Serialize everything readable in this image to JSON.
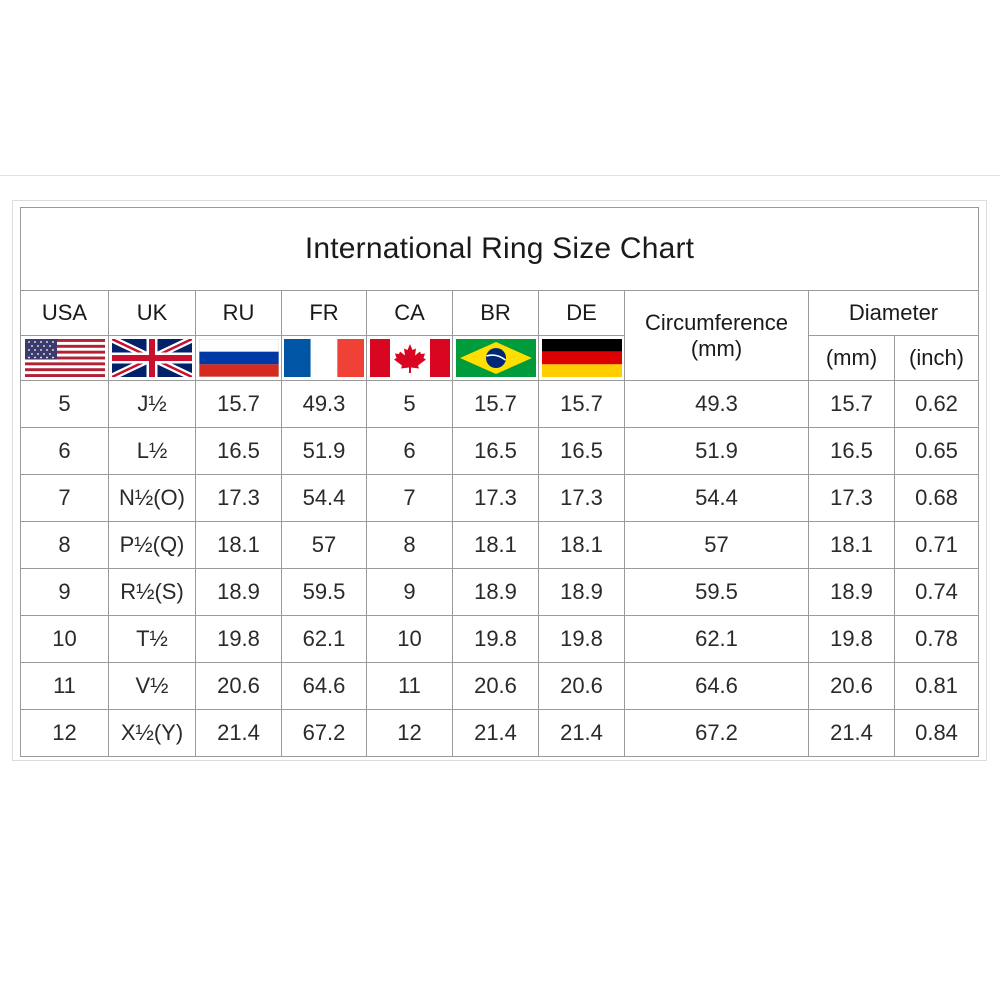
{
  "title": "International Ring Size Chart",
  "headers": {
    "usa": "USA",
    "uk": "UK",
    "ru": "RU",
    "fr": "FR",
    "ca": "CA",
    "br": "BR",
    "de": "DE",
    "circumference_line1": "Circumference",
    "circumference_line2": "(mm)",
    "diameter": "Diameter",
    "diameter_mm": "(mm)",
    "diameter_inch": "(inch)"
  },
  "flags": [
    "us-flag-icon",
    "uk-flag-icon",
    "russia-flag-icon",
    "france-flag-icon",
    "canada-flag-icon",
    "brazil-flag-icon",
    "germany-flag-icon"
  ],
  "rows": [
    {
      "usa": "5",
      "uk": "J½",
      "ru": "15.7",
      "fr": "49.3",
      "ca": "5",
      "br": "15.7",
      "de": "15.7",
      "circ": "49.3",
      "dmm": "15.7",
      "dinch": "0.62"
    },
    {
      "usa": "6",
      "uk": "L½",
      "ru": "16.5",
      "fr": "51.9",
      "ca": "6",
      "br": "16.5",
      "de": "16.5",
      "circ": "51.9",
      "dmm": "16.5",
      "dinch": "0.65"
    },
    {
      "usa": "7",
      "uk": "N½(O)",
      "ru": "17.3",
      "fr": "54.4",
      "ca": "7",
      "br": "17.3",
      "de": "17.3",
      "circ": "54.4",
      "dmm": "17.3",
      "dinch": "0.68"
    },
    {
      "usa": "8",
      "uk": "P½(Q)",
      "ru": "18.1",
      "fr": "57",
      "ca": "8",
      "br": "18.1",
      "de": "18.1",
      "circ": "57",
      "dmm": "18.1",
      "dinch": "0.71"
    },
    {
      "usa": "9",
      "uk": "R½(S)",
      "ru": "18.9",
      "fr": "59.5",
      "ca": "9",
      "br": "18.9",
      "de": "18.9",
      "circ": "59.5",
      "dmm": "18.9",
      "dinch": "0.74"
    },
    {
      "usa": "10",
      "uk": "T½",
      "ru": "19.8",
      "fr": "62.1",
      "ca": "10",
      "br": "19.8",
      "de": "19.8",
      "circ": "62.1",
      "dmm": "19.8",
      "dinch": "0.78"
    },
    {
      "usa": "11",
      "uk": "V½",
      "ru": "20.6",
      "fr": "64.6",
      "ca": "11",
      "br": "20.6",
      "de": "20.6",
      "circ": "64.6",
      "dmm": "20.6",
      "dinch": "0.81"
    },
    {
      "usa": "12",
      "uk": "X½(Y)",
      "ru": "21.4",
      "fr": "67.2",
      "ca": "12",
      "br": "21.4",
      "de": "21.4",
      "circ": "67.2",
      "dmm": "21.4",
      "dinch": "0.84"
    }
  ],
  "colors": {
    "grid": "#9a9a9a",
    "us_red": "#b22234",
    "us_blue": "#3c3b6e",
    "uk_blue": "#012169",
    "uk_red": "#c8102e",
    "ru_blue": "#0039a6",
    "ru_red": "#d52b1e",
    "fr_blue": "#0055a4",
    "fr_red": "#ef4135",
    "ca_red": "#d80621",
    "br_green": "#009c3b",
    "br_yellow": "#ffdf00",
    "br_blue": "#002776",
    "de_black": "#000000",
    "de_red": "#dd0000",
    "de_gold": "#ffce00"
  }
}
